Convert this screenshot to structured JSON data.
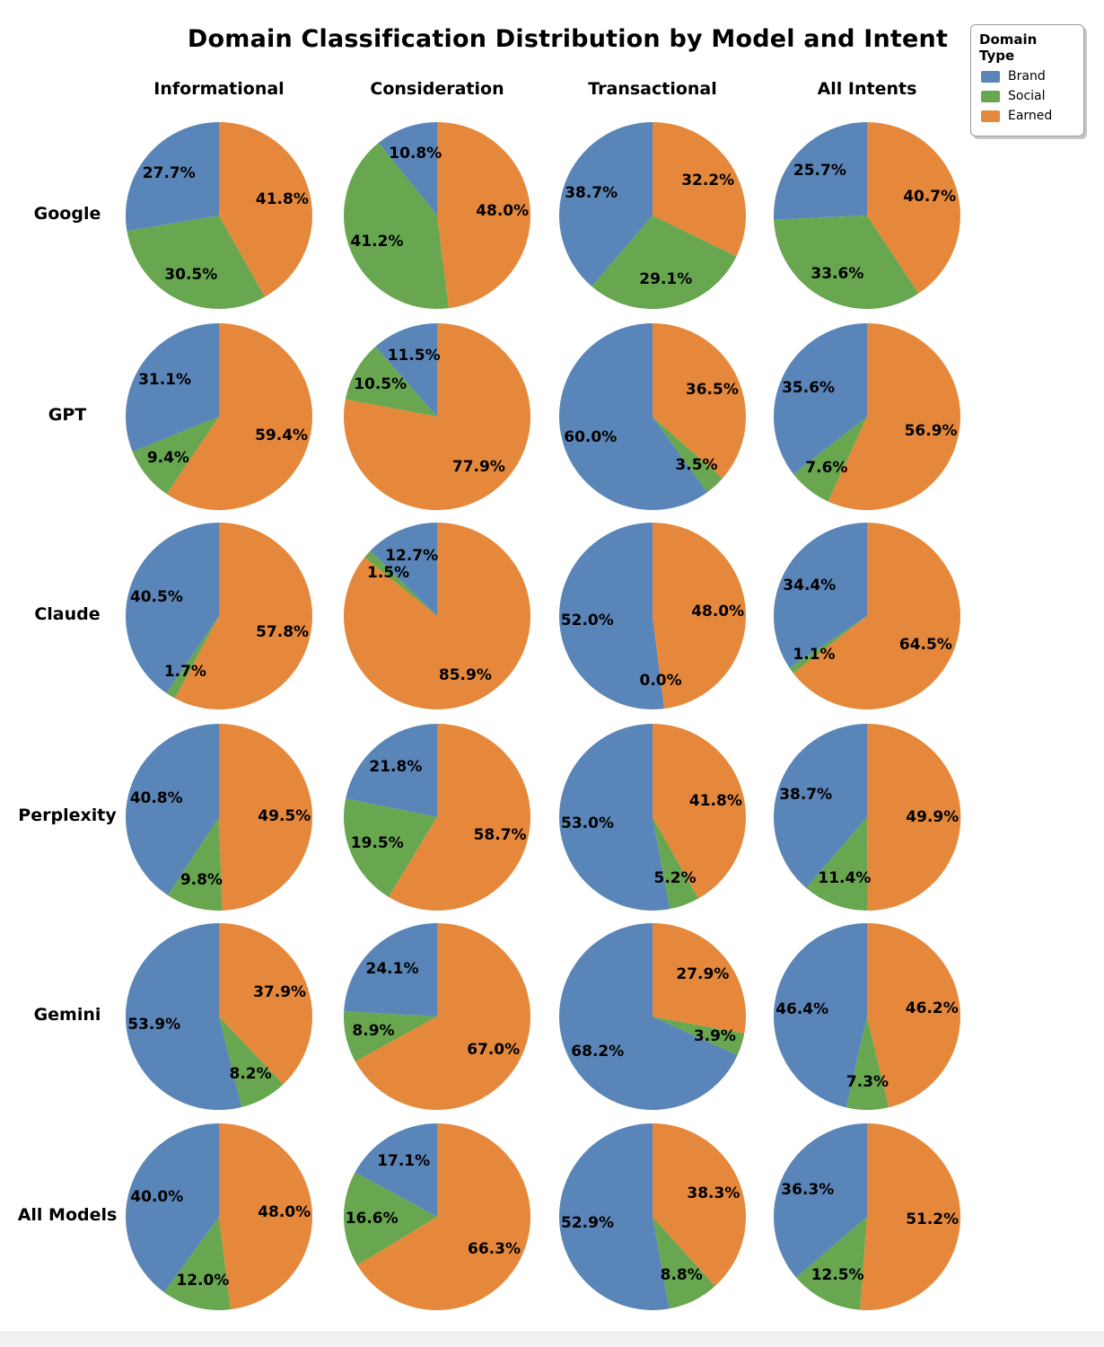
{
  "title": "Domain Classification Distribution by Model and Intent",
  "chart_data": {
    "type": "pie",
    "title": "Domain Classification Distribution by Model and Intent",
    "unit": "%",
    "start_angle": 90,
    "direction": "counterclockwise",
    "legend": {
      "title": "Domain Type",
      "position": "upper right",
      "entries": [
        {
          "label": "Brand",
          "color": "#5A85B8"
        },
        {
          "label": "Social",
          "color": "#68A750"
        },
        {
          "label": "Earned",
          "color": "#E5883B"
        }
      ]
    },
    "columns": [
      "Informational",
      "Consideration",
      "Transactional",
      "All Intents"
    ],
    "rows": [
      "Google",
      "GPT",
      "Claude",
      "Perplexity",
      "Gemini",
      "All Models"
    ],
    "series_labels": [
      "Brand",
      "Social",
      "Earned"
    ],
    "values": [
      [
        [
          27.7,
          30.5,
          41.8
        ],
        [
          10.8,
          41.2,
          48.0
        ],
        [
          38.7,
          29.1,
          32.2
        ],
        [
          25.7,
          33.6,
          40.7
        ]
      ],
      [
        [
          31.1,
          9.4,
          59.4
        ],
        [
          11.5,
          10.5,
          77.9
        ],
        [
          60.0,
          3.5,
          36.5
        ],
        [
          35.6,
          7.6,
          56.9
        ]
      ],
      [
        [
          40.5,
          1.7,
          57.8
        ],
        [
          12.7,
          1.5,
          85.9
        ],
        [
          52.0,
          0.0,
          48.0
        ],
        [
          34.4,
          1.1,
          64.5
        ]
      ],
      [
        [
          40.8,
          9.8,
          49.5
        ],
        [
          21.8,
          19.5,
          58.7
        ],
        [
          53.0,
          5.2,
          41.8
        ],
        [
          38.7,
          11.4,
          49.9
        ]
      ],
      [
        [
          53.9,
          8.2,
          37.9
        ],
        [
          24.1,
          8.9,
          67.0
        ],
        [
          68.2,
          3.9,
          27.9
        ],
        [
          46.4,
          7.3,
          46.2
        ]
      ],
      [
        [
          40.0,
          12.0,
          48.0
        ],
        [
          17.1,
          16.6,
          66.3
        ],
        [
          52.9,
          8.8,
          38.3
        ],
        [
          36.3,
          12.5,
          51.2
        ]
      ]
    ]
  }
}
